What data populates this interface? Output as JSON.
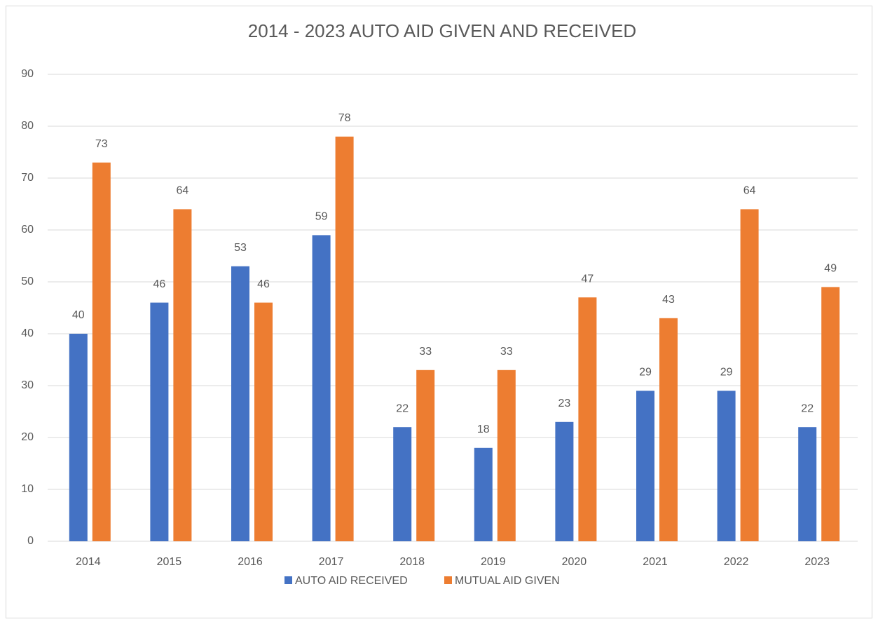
{
  "chart_data": {
    "type": "bar",
    "title": "2014 - 2023 AUTO AID GIVEN AND RECEIVED",
    "categories": [
      "2014",
      "2015",
      "2016",
      "2017",
      "2018",
      "2019",
      "2020",
      "2021",
      "2022",
      "2023"
    ],
    "series": [
      {
        "name": "AUTO AID RECEIVED",
        "color": "#4472c4",
        "values": [
          40,
          46,
          53,
          59,
          22,
          18,
          23,
          29,
          29,
          22
        ]
      },
      {
        "name": "MUTUAL AID GIVEN",
        "color": "#ed7d31",
        "values": [
          73,
          64,
          46,
          78,
          33,
          33,
          47,
          43,
          64,
          49
        ]
      }
    ],
    "ylim": [
      0,
      90
    ],
    "yticks": [
      0,
      10,
      20,
      30,
      40,
      50,
      60,
      70,
      80,
      90
    ],
    "grid": true,
    "legend": "bottom"
  }
}
